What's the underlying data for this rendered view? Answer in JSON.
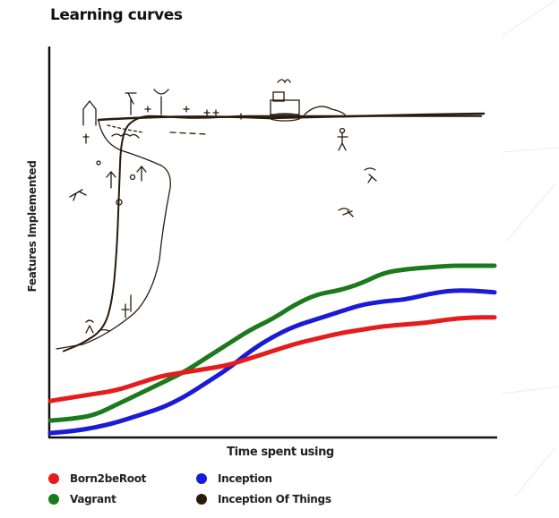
{
  "chart_data": {
    "type": "line",
    "title": "Learning curves",
    "xlabel": "Time spent using",
    "ylabel": "Features Implemented",
    "xlim": [
      0,
      100
    ],
    "ylim": [
      0,
      100
    ],
    "grid": false,
    "legend_position": "bottom",
    "series": [
      {
        "name": "Born2beRoot",
        "color": "#e61b1b",
        "x": [
          0,
          5,
          10,
          15,
          20,
          25,
          30,
          35,
          40,
          45,
          50,
          55,
          60,
          65,
          70,
          75,
          80,
          85,
          90,
          95,
          100
        ],
        "y": [
          10,
          11,
          12,
          13,
          15,
          17,
          18,
          19,
          20,
          22,
          24,
          26,
          27.5,
          29,
          30,
          31,
          31.5,
          32,
          33,
          33.5,
          33.5
        ]
      },
      {
        "name": "Vagrant",
        "color": "#1b7a1b",
        "x": [
          0,
          5,
          10,
          15,
          20,
          25,
          30,
          35,
          40,
          45,
          50,
          55,
          60,
          65,
          70,
          75,
          80,
          85,
          90,
          95,
          100
        ],
        "y": [
          4.5,
          5,
          6,
          9,
          12,
          15,
          18,
          22,
          26,
          30,
          33,
          37,
          40,
          41,
          43,
          46,
          47,
          47.5,
          48,
          48,
          48
        ]
      },
      {
        "name": "Inception",
        "color": "#1b1bd6",
        "x": [
          0,
          5,
          10,
          15,
          20,
          25,
          30,
          35,
          40,
          45,
          50,
          55,
          60,
          65,
          70,
          75,
          80,
          85,
          90,
          95,
          100
        ],
        "y": [
          1,
          1.5,
          2.5,
          4,
          6,
          8,
          11,
          15,
          19,
          24,
          28,
          31,
          33,
          35,
          37,
          38,
          38.5,
          40,
          41,
          41,
          40.5
        ]
      },
      {
        "name": "Inception Of Things",
        "color": "#2a1a0c",
        "x": [
          3,
          7,
          12,
          14,
          15,
          15.5,
          16,
          20,
          25,
          30,
          36,
          42,
          48,
          55,
          62,
          70,
          78,
          86,
          94,
          97
        ],
        "y": [
          24,
          26,
          30,
          38,
          52,
          68,
          86,
          90,
          90,
          89.5,
          89.5,
          90,
          90,
          90,
          90,
          90,
          90,
          90,
          90,
          90
        ]
      }
    ]
  }
}
